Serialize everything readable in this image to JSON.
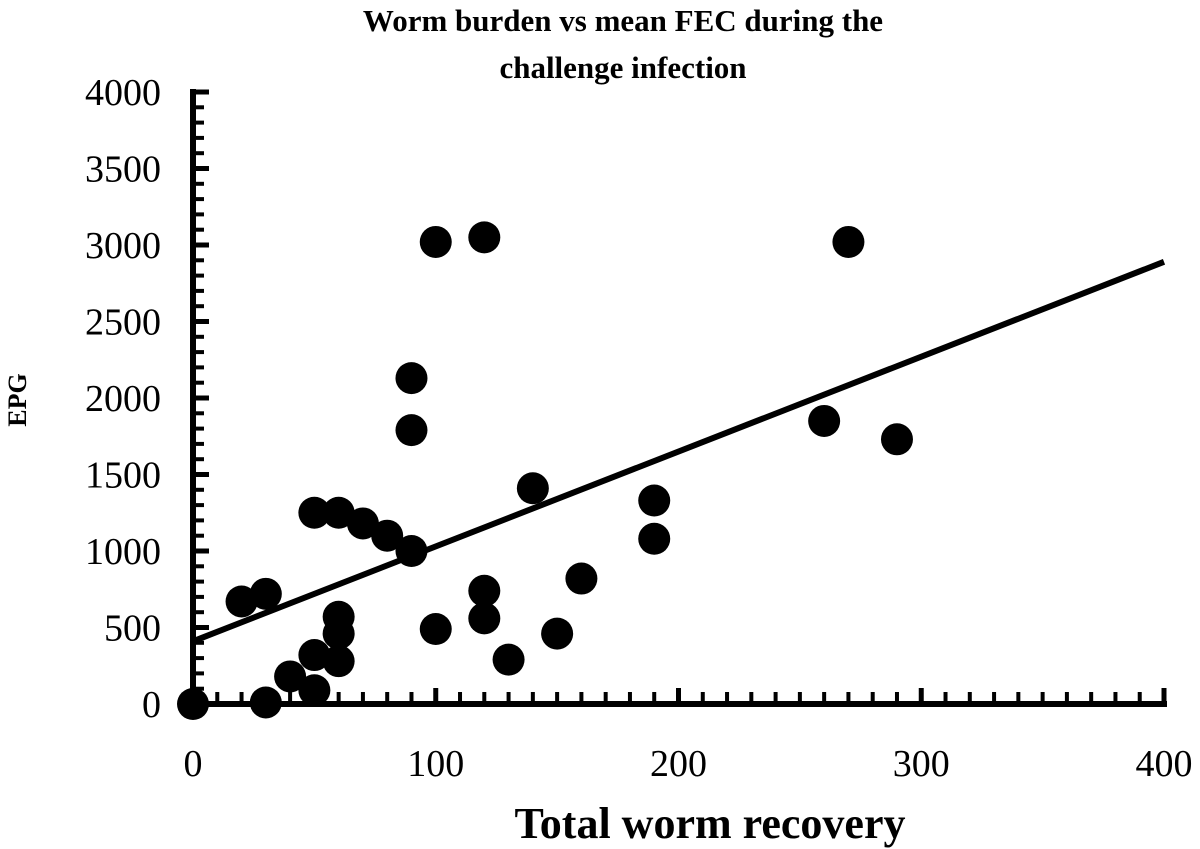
{
  "chart_data": {
    "type": "scatter",
    "title_lines": [
      "Worm burden vs mean FEC during the",
      "challenge infection"
    ],
    "xlabel": "Total worm recovery",
    "ylabel": "EPG",
    "xlim": [
      0,
      400
    ],
    "ylim": [
      0,
      4000
    ],
    "x_ticks": [
      "0",
      "100",
      "200",
      "300",
      "400"
    ],
    "y_ticks": [
      "0",
      "500",
      "1000",
      "1500",
      "2000",
      "2500",
      "3000",
      "3500",
      "4000"
    ],
    "grid": false,
    "legend": "none",
    "colors": {
      "points": "#000000",
      "axes": "#000000",
      "trendline": "#000000"
    },
    "points": [
      {
        "x": 0,
        "y": 0
      },
      {
        "x": 20,
        "y": 670
      },
      {
        "x": 30,
        "y": 720
      },
      {
        "x": 30,
        "y": 10
      },
      {
        "x": 40,
        "y": 180
      },
      {
        "x": 50,
        "y": 90
      },
      {
        "x": 50,
        "y": 320
      },
      {
        "x": 50,
        "y": 1250
      },
      {
        "x": 60,
        "y": 1250
      },
      {
        "x": 60,
        "y": 570
      },
      {
        "x": 60,
        "y": 460
      },
      {
        "x": 60,
        "y": 280
      },
      {
        "x": 70,
        "y": 1180
      },
      {
        "x": 80,
        "y": 1100
      },
      {
        "x": 90,
        "y": 1000
      },
      {
        "x": 90,
        "y": 1790
      },
      {
        "x": 90,
        "y": 2130
      },
      {
        "x": 100,
        "y": 3020
      },
      {
        "x": 100,
        "y": 490
      },
      {
        "x": 120,
        "y": 3050
      },
      {
        "x": 120,
        "y": 740
      },
      {
        "x": 120,
        "y": 560
      },
      {
        "x": 130,
        "y": 290
      },
      {
        "x": 140,
        "y": 1410
      },
      {
        "x": 150,
        "y": 460
      },
      {
        "x": 160,
        "y": 820
      },
      {
        "x": 190,
        "y": 1330
      },
      {
        "x": 190,
        "y": 1080
      },
      {
        "x": 260,
        "y": 1850
      },
      {
        "x": 270,
        "y": 3020
      },
      {
        "x": 290,
        "y": 1730
      }
    ],
    "trendline": {
      "x": [
        0,
        400
      ],
      "y": [
        410,
        2890
      ]
    }
  }
}
